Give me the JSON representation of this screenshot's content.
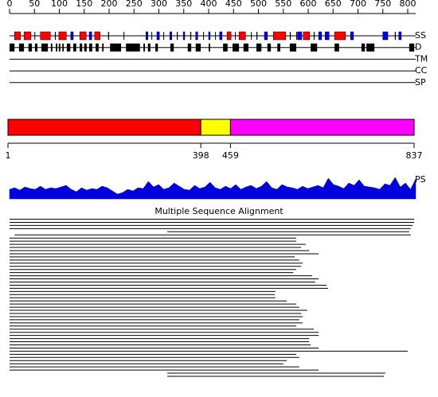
{
  "ruler": {
    "xlim": [
      0,
      816
    ],
    "ticks": [
      0,
      50,
      100,
      150,
      200,
      250,
      300,
      350,
      400,
      450,
      500,
      550,
      600,
      650,
      700,
      750,
      800
    ]
  },
  "tracks": [
    {
      "label": "SS",
      "helix": [
        [
          10,
          22
        ],
        [
          29,
          43
        ],
        [
          62,
          82
        ],
        [
          99,
          114
        ],
        [
          141,
          154
        ],
        [
          171,
          182
        ],
        [
          437,
          445
        ],
        [
          461,
          474
        ],
        [
          530,
          555
        ],
        [
          590,
          603
        ],
        [
          653,
          675
        ]
      ],
      "strand": [
        [
          123,
          128
        ],
        [
          160,
          165
        ],
        [
          274,
          278
        ],
        [
          296,
          301
        ],
        [
          322,
          326
        ],
        [
          349,
          352
        ],
        [
          374,
          378
        ],
        [
          400,
          403
        ],
        [
          422,
          427
        ],
        [
          512,
          518
        ],
        [
          579,
          587
        ],
        [
          621,
          627
        ],
        [
          634,
          642
        ],
        [
          685,
          691
        ],
        [
          750,
          760
        ],
        [
          782,
          787
        ]
      ],
      "coil": [
        [
          50,
          51
        ],
        [
          91,
          93
        ],
        [
          198,
          200
        ],
        [
          229,
          230
        ],
        [
          285,
          286
        ],
        [
          309,
          310
        ],
        [
          336,
          338
        ],
        [
          363,
          365
        ],
        [
          389,
          390
        ],
        [
          413,
          414
        ],
        [
          453,
          454
        ],
        [
          485,
          486
        ],
        [
          496,
          498
        ],
        [
          563,
          565
        ],
        [
          576,
          578
        ],
        [
          611,
          613
        ],
        [
          774,
          776
        ]
      ]
    },
    {
      "label": "D",
      "segments": [
        [
          0,
          10
        ],
        [
          19,
          29
        ],
        [
          38,
          45
        ],
        [
          51,
          56
        ],
        [
          64,
          77
        ],
        [
          83,
          86
        ],
        [
          93,
          96
        ],
        [
          99,
          102
        ],
        [
          106,
          109
        ],
        [
          115,
          122
        ],
        [
          128,
          134
        ],
        [
          141,
          146
        ],
        [
          150,
          155
        ],
        [
          160,
          166
        ],
        [
          173,
          179
        ],
        [
          186,
          189
        ],
        [
          202,
          224
        ],
        [
          234,
          262
        ],
        [
          269,
          272
        ],
        [
          278,
          283
        ],
        [
          293,
          298
        ],
        [
          323,
          330
        ],
        [
          358,
          365
        ],
        [
          374,
          384
        ],
        [
          400,
          403
        ],
        [
          429,
          438
        ],
        [
          448,
          461
        ],
        [
          470,
          480
        ],
        [
          496,
          506
        ],
        [
          518,
          525
        ],
        [
          538,
          544
        ],
        [
          563,
          576
        ],
        [
          605,
          618
        ],
        [
          653,
          662
        ],
        [
          707,
          714
        ],
        [
          717,
          733
        ],
        [
          803,
          813
        ]
      ]
    },
    {
      "label": "TM"
    },
    {
      "label": "CC"
    },
    {
      "label": "SP"
    }
  ],
  "colors": {
    "helix": "#ff0000",
    "strand": "#0000ff",
    "coil": "#000000",
    "segments": "#000000"
  },
  "domains": {
    "xlim": [
      1,
      837
    ],
    "ticks": [
      1,
      398,
      459,
      837
    ],
    "blocks": [
      {
        "start": 1,
        "end": 398,
        "color": "#ff0000"
      },
      {
        "start": 398,
        "end": 459,
        "color": "#ffff00"
      },
      {
        "start": 459,
        "end": 837,
        "color": "#ff00ff"
      }
    ]
  },
  "profile": {
    "label": "PS",
    "color": "#0000dd",
    "ylim": [
      0,
      30
    ],
    "values": [
      12,
      14,
      11,
      15,
      13,
      12,
      16,
      12,
      14,
      13,
      15,
      17,
      12,
      9,
      14,
      11,
      13,
      12,
      16,
      14,
      10,
      6,
      8,
      12,
      10,
      14,
      13,
      22,
      15,
      18,
      12,
      14,
      20,
      16,
      12,
      11,
      17,
      13,
      15,
      21,
      14,
      12,
      16,
      13,
      18,
      12,
      15,
      17,
      13,
      16,
      22,
      14,
      12,
      18,
      15,
      14,
      12,
      16,
      13,
      15,
      17,
      14,
      26,
      18,
      16,
      13,
      20,
      17,
      24,
      16,
      15,
      14,
      12,
      19,
      17,
      27,
      15,
      20,
      12,
      25
    ]
  },
  "alignment": {
    "title": "Multiple Sequence Alignment",
    "rows": [
      [
        0,
        813
      ],
      [
        0,
        813
      ],
      [
        0,
        810
      ],
      [
        0,
        806
      ],
      [
        317,
        803
      ],
      [
        10,
        806
      ],
      [
        0,
        576
      ],
      [
        0,
        576
      ],
      [
        0,
        595
      ],
      [
        0,
        586
      ],
      [
        0,
        602
      ],
      [
        0,
        621
      ],
      [
        0,
        573
      ],
      [
        0,
        582
      ],
      [
        0,
        589
      ],
      [
        0,
        586
      ],
      [
        0,
        576
      ],
      [
        0,
        570
      ],
      [
        0,
        608
      ],
      [
        0,
        621
      ],
      [
        0,
        614
      ],
      [
        0,
        637
      ],
      [
        0,
        640
      ],
      [
        0,
        534
      ],
      [
        0,
        533
      ],
      [
        0,
        534
      ],
      [
        0,
        557
      ],
      [
        0,
        576
      ],
      [
        0,
        582
      ],
      [
        0,
        598
      ],
      [
        0,
        586
      ],
      [
        0,
        589
      ],
      [
        0,
        582
      ],
      [
        0,
        589
      ],
      [
        0,
        576
      ],
      [
        0,
        611
      ],
      [
        0,
        621
      ],
      [
        0,
        621
      ],
      [
        0,
        602
      ],
      [
        0,
        602
      ],
      [
        0,
        605
      ],
      [
        0,
        621
      ],
      [
        0,
        800
      ],
      [
        0,
        576
      ],
      [
        0,
        582
      ],
      [
        0,
        557
      ],
      [
        0,
        550
      ],
      [
        0,
        582
      ],
      [
        0,
        621
      ],
      [
        317,
        755
      ],
      [
        317,
        752
      ]
    ]
  }
}
